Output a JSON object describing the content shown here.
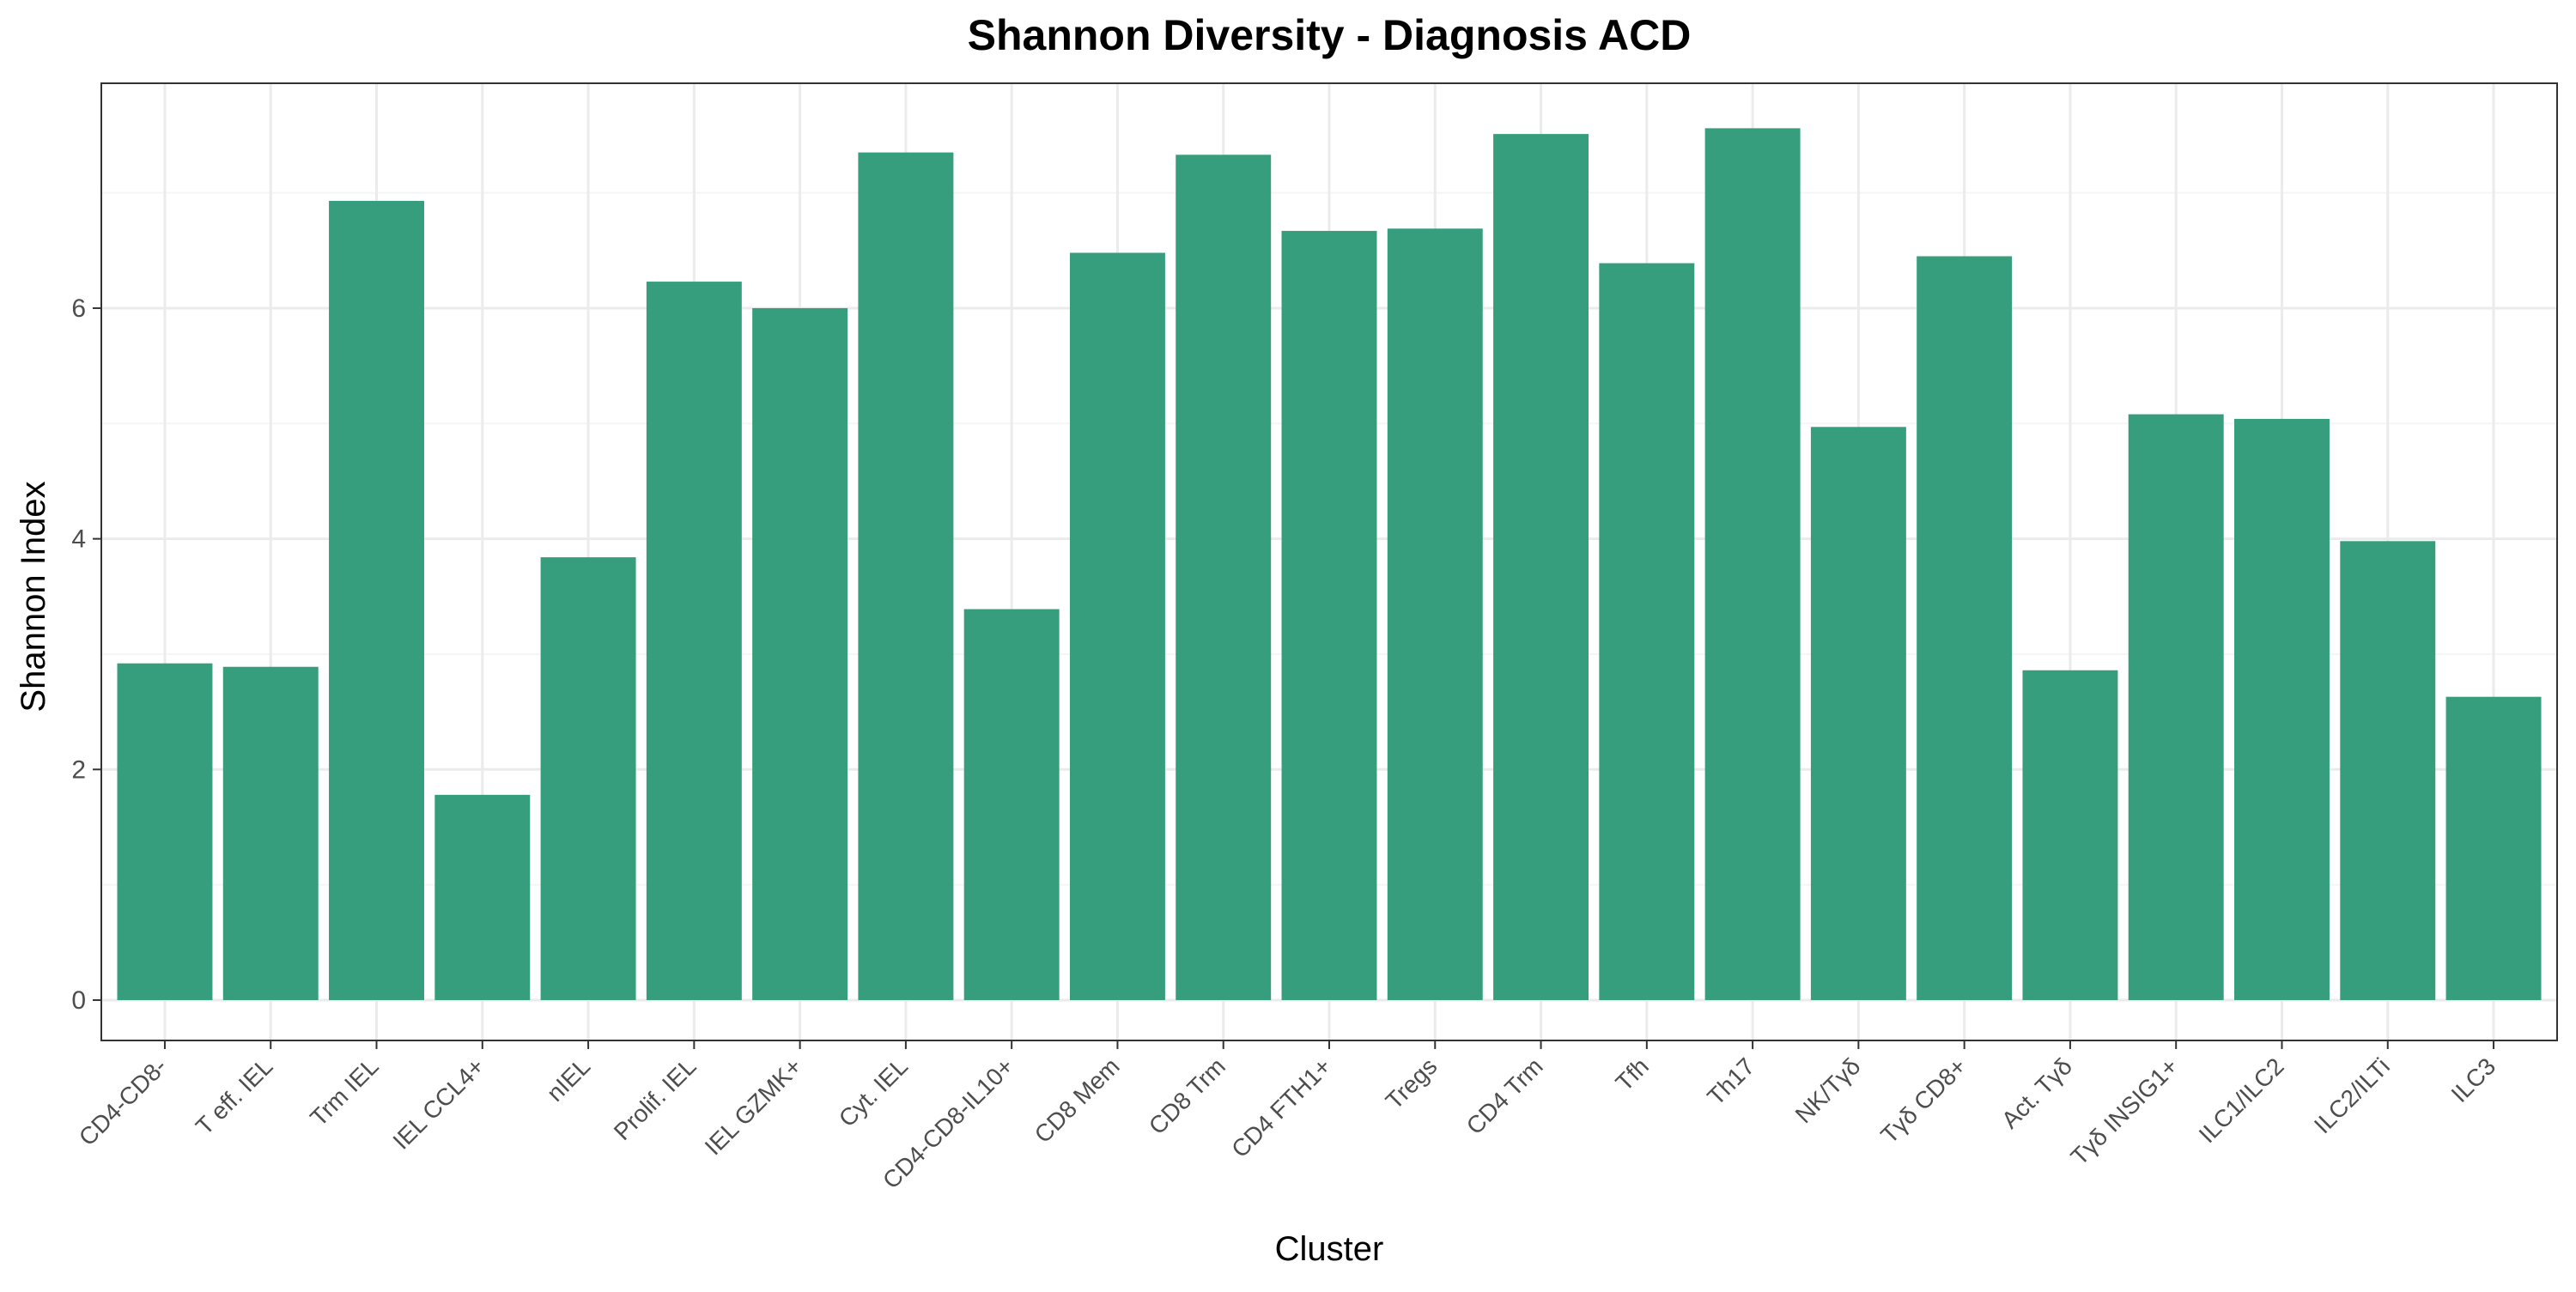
{
  "chart_data": {
    "type": "bar",
    "title": "Shannon Diversity - Diagnosis ACD",
    "xlabel": "Cluster",
    "ylabel": "Shannon Index",
    "ylim": [
      -0.35,
      7.95
    ],
    "yticks": [
      0,
      2,
      4,
      6
    ],
    "grid": true,
    "bar_color": "#379e7d",
    "categories": [
      "CD4-CD8-",
      "T eff. IEL",
      "Trm IEL",
      "IEL CCL4+",
      "nIEL",
      "Prolif. IEL",
      "IEL GZMK+",
      "Cyt. IEL",
      "CD4-CD8-IL10+",
      "CD8 Mem",
      "CD8 Trm",
      "CD4 FTH1+",
      "Tregs",
      "CD4 Trm",
      "Tfh",
      "Th17",
      "NK/Tγδ",
      "Tγδ CD8+",
      "Act. Tγδ",
      "Tγδ INSIG1+",
      "ILC1/ILC2",
      "ILC2/ILTi",
      "ILC3"
    ],
    "values": [
      2.92,
      2.89,
      6.93,
      1.78,
      3.84,
      6.23,
      6.0,
      7.35,
      3.39,
      6.48,
      7.33,
      6.67,
      6.69,
      7.51,
      6.39,
      7.56,
      4.97,
      6.45,
      2.86,
      5.08,
      5.04,
      3.98,
      2.63
    ]
  },
  "colors": {
    "background": "#ffffff",
    "panel_border": "#333333",
    "grid_major": "#ebebeb",
    "grid_minor": "#f5f5f5",
    "tick_text": "#4d4d4d"
  }
}
